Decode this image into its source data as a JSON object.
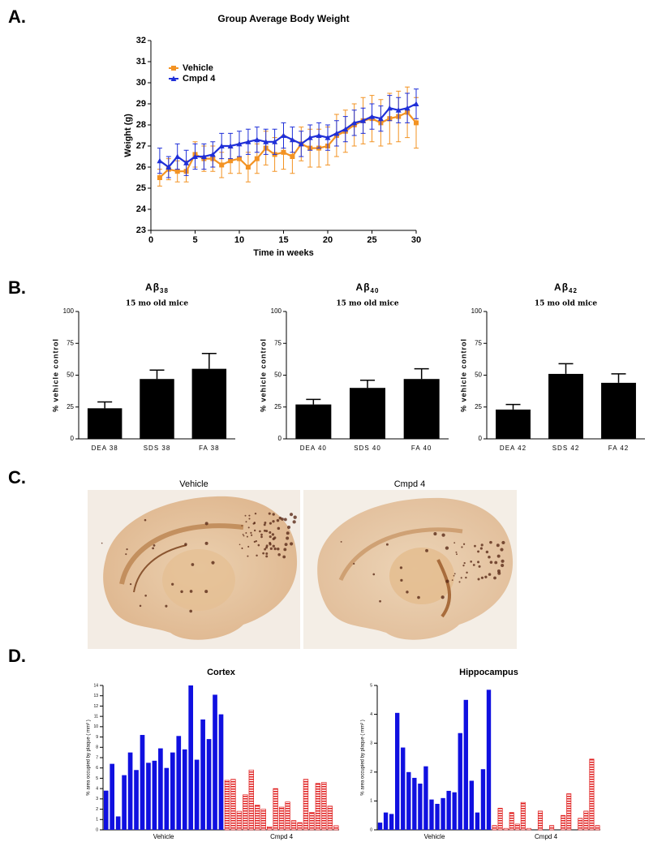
{
  "panel_labels": [
    "A.",
    "B.",
    "C.",
    "D."
  ],
  "images": {
    "labels": [
      "Vehicle",
      "Cmpd 4"
    ]
  },
  "chart_data": [
    {
      "type": "line",
      "title": "Group Average Body Weight",
      "xlabel": "Time in weeks",
      "ylabel": "Weight (g)",
      "x": [
        1,
        2,
        3,
        4,
        5,
        6,
        7,
        8,
        9,
        10,
        11,
        12,
        13,
        14,
        15,
        16,
        17,
        18,
        19,
        20,
        21,
        22,
        23,
        24,
        25,
        26,
        27,
        28,
        29,
        30
      ],
      "xlim": [
        0,
        30
      ],
      "xticks": [
        0,
        5,
        10,
        15,
        20,
        25,
        30
      ],
      "ylim": [
        23,
        32
      ],
      "yticks": [
        23,
        24,
        25,
        26,
        27,
        28,
        29,
        30,
        31,
        32
      ],
      "legend": "upper left",
      "series": [
        {
          "name": "Vehicle",
          "color": "#f39323",
          "marker": "square",
          "values": [
            25.5,
            25.9,
            25.8,
            25.8,
            26.6,
            26.4,
            26.4,
            26.1,
            26.3,
            26.4,
            26.0,
            26.4,
            26.9,
            26.6,
            26.7,
            26.5,
            27.1,
            26.9,
            26.9,
            27.0,
            27.5,
            27.7,
            28.0,
            28.2,
            28.3,
            28.1,
            28.3,
            28.4,
            28.6,
            28.1
          ],
          "errors": [
            0.4,
            0.5,
            0.5,
            0.5,
            0.6,
            0.6,
            0.6,
            0.6,
            0.6,
            0.7,
            0.7,
            0.7,
            0.8,
            0.8,
            0.8,
            0.8,
            0.8,
            0.9,
            0.9,
            0.9,
            1.0,
            1.0,
            1.0,
            1.1,
            1.1,
            1.1,
            1.2,
            1.2,
            1.2,
            1.2
          ]
        },
        {
          "name": "Cmpd 4",
          "color": "#1f2fd8",
          "marker": "triangle",
          "values": [
            26.3,
            26.0,
            26.5,
            26.2,
            26.5,
            26.5,
            26.6,
            27.0,
            27.0,
            27.1,
            27.2,
            27.3,
            27.2,
            27.2,
            27.5,
            27.3,
            27.1,
            27.4,
            27.5,
            27.4,
            27.6,
            27.8,
            28.1,
            28.2,
            28.4,
            28.3,
            28.8,
            28.7,
            28.8,
            29.0
          ],
          "errors": [
            0.6,
            0.5,
            0.6,
            0.6,
            0.6,
            0.6,
            0.6,
            0.6,
            0.6,
            0.6,
            0.6,
            0.6,
            0.6,
            0.6,
            0.6,
            0.6,
            0.6,
            0.6,
            0.6,
            0.6,
            0.6,
            0.6,
            0.6,
            0.6,
            0.6,
            0.6,
            0.6,
            0.6,
            0.7,
            0.7
          ]
        }
      ]
    },
    {
      "type": "bar",
      "title": {
        "text": "Aβ",
        "subscript": "38"
      },
      "subtitle": "15 mo old mice",
      "ylabel": "% vehicle control",
      "categories": [
        "DEA 38",
        "SDS 38",
        "FA 38"
      ],
      "values": [
        24,
        47,
        55
      ],
      "errors": [
        5,
        7,
        12
      ],
      "color": "#000000",
      "ylim": [
        0,
        100
      ],
      "yticks": [
        0,
        25,
        50,
        75,
        100
      ]
    },
    {
      "type": "bar",
      "title": {
        "text": "Aβ",
        "subscript": "40"
      },
      "subtitle": "15 mo old mice",
      "ylabel": "% vehicle control",
      "categories": [
        "DEA 40",
        "SDS 40",
        "FA 40"
      ],
      "values": [
        27,
        40,
        47
      ],
      "errors": [
        4,
        6,
        8
      ],
      "color": "#000000",
      "ylim": [
        0,
        100
      ],
      "yticks": [
        0,
        25,
        50,
        75,
        100
      ]
    },
    {
      "type": "bar",
      "title": {
        "text": "Aβ",
        "subscript": "42"
      },
      "subtitle": "15 mo old mice",
      "ylabel": "% vehicle control",
      "categories": [
        "DEA 42",
        "SDS 42",
        "FA 42"
      ],
      "values": [
        23,
        51,
        44
      ],
      "errors": [
        4,
        8,
        7
      ],
      "color": "#000000",
      "ylim": [
        0,
        100
      ],
      "yticks": [
        0,
        25,
        50,
        75,
        100
      ]
    },
    {
      "type": "bar",
      "title": "Cortex",
      "ylabel": "% area occupied by plaque ( mm² )",
      "ylim": [
        0,
        14
      ],
      "yticks": [
        0,
        1,
        2,
        3,
        4,
        5,
        6,
        7,
        8,
        9,
        10,
        11,
        12,
        13,
        14
      ],
      "series": [
        {
          "name": "Vehicle",
          "color": "#1010e0",
          "hatched": false,
          "values": [
            3.8,
            6.4,
            1.3,
            5.3,
            7.5,
            5.8,
            9.2,
            6.5,
            6.7,
            7.9,
            6.0,
            7.5,
            9.1,
            7.8,
            14.0,
            6.8,
            10.7,
            8.8,
            13.1,
            11.2
          ]
        },
        {
          "name": "Cmpd 4",
          "color": "#e02020",
          "hatched": true,
          "values": [
            4.8,
            4.9,
            1.8,
            3.4,
            5.8,
            2.4,
            2.0,
            0.3,
            4.0,
            2.2,
            2.7,
            0.9,
            0.7,
            4.9,
            1.7,
            4.5,
            4.6,
            2.3,
            0.4
          ]
        }
      ]
    },
    {
      "type": "bar",
      "title": "Hippocampus",
      "ylabel": "% area occupied by plaque ( mm² )",
      "ylim": [
        0,
        5
      ],
      "yticks": [
        0,
        1,
        2,
        3,
        4,
        5
      ],
      "series": [
        {
          "name": "Vehicle",
          "color": "#1010e0",
          "hatched": false,
          "values": [
            0.25,
            0.6,
            0.55,
            4.05,
            2.85,
            2.0,
            1.8,
            1.6,
            2.2,
            1.05,
            0.9,
            1.1,
            1.35,
            1.3,
            3.35,
            4.5,
            1.7,
            0.6,
            2.1,
            4.85
          ]
        },
        {
          "name": "Cmpd 4",
          "color": "#e02020",
          "hatched": true,
          "values": [
            0.15,
            0.75,
            0.05,
            0.6,
            0.2,
            0.95,
            0.05,
            0.0,
            0.65,
            0.0,
            0.15,
            0.0,
            0.5,
            1.25,
            0.0,
            0.4,
            0.65,
            2.45,
            0.15
          ]
        }
      ]
    }
  ]
}
